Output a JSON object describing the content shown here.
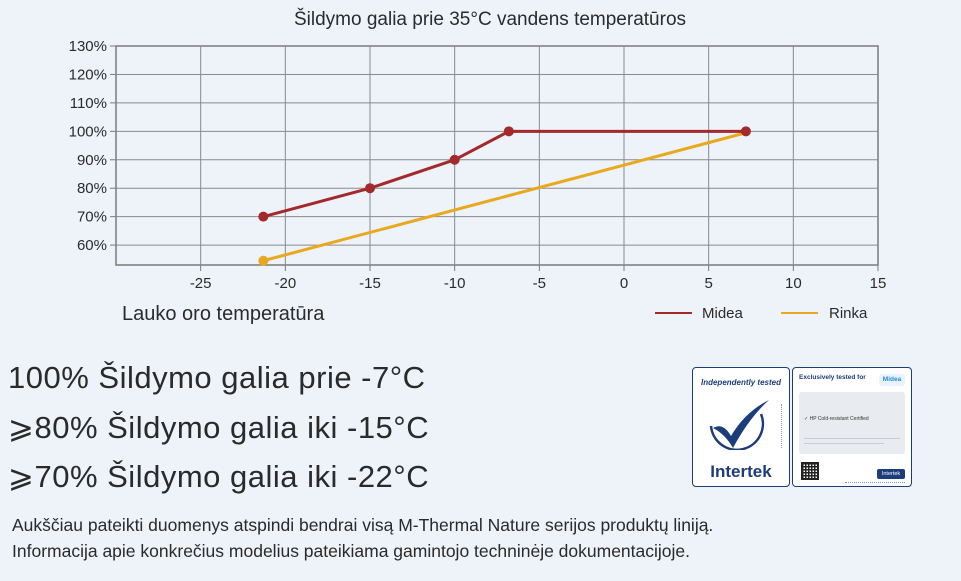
{
  "chart_data": {
    "type": "line",
    "title": "Šildymo galia prie 35°C vandens temperatūros",
    "xlabel": "Lauko oro temperatūra",
    "ylabel": "",
    "xlim": [
      -30,
      15
    ],
    "ylim": [
      53,
      130
    ],
    "x_ticks": [
      -25,
      -20,
      -15,
      -10,
      -5,
      0,
      5,
      10,
      15
    ],
    "x_tick_labels": [
      "-25",
      "-20",
      "-15",
      "-10",
      "-5",
      "0",
      "5",
      "10",
      "15"
    ],
    "y_ticks": [
      60,
      70,
      80,
      90,
      100,
      110,
      120,
      130
    ],
    "y_tick_labels": [
      "60%",
      "70%",
      "80%",
      "90%",
      "100%",
      "110%",
      "120%",
      "130%"
    ],
    "grid": true,
    "legend_position": "bottom-right",
    "series": [
      {
        "name": "Midea",
        "color": "#a3292c",
        "x": [
          -21.3,
          -15,
          -10,
          -6.8,
          7.2
        ],
        "y": [
          70,
          80,
          90,
          100,
          100
        ]
      },
      {
        "name": "Rinka",
        "color": "#e8a91f",
        "x": [
          -21.3,
          7.2
        ],
        "y": [
          54.5,
          99.5
        ]
      }
    ]
  },
  "headlines": [
    "100% Šildymo galia prie -7°C",
    "⩾80% Šildymo galia iki -15°C",
    "⩾70% Šildymo galia iki -22°C"
  ],
  "notes": [
    "Aukščiau pateikti duomenys atspindi bendrai visą M-Thermal Nature serijos produktų liniją.",
    "Informacija apie konkrečius modelius pateikiama gamintojo techninėje dokumentacijoje."
  ],
  "badge": {
    "left_top": "Independently tested",
    "left_brand": "Intertek",
    "right_top": "Exclusively tested for",
    "right_logo": "Midea",
    "right_cert": "✓  HP Cold-resistant Certified",
    "right_mini_logo": "Intertek",
    "check_icon": "checkmark-icon",
    "brand_color": "#1d3c7a"
  }
}
